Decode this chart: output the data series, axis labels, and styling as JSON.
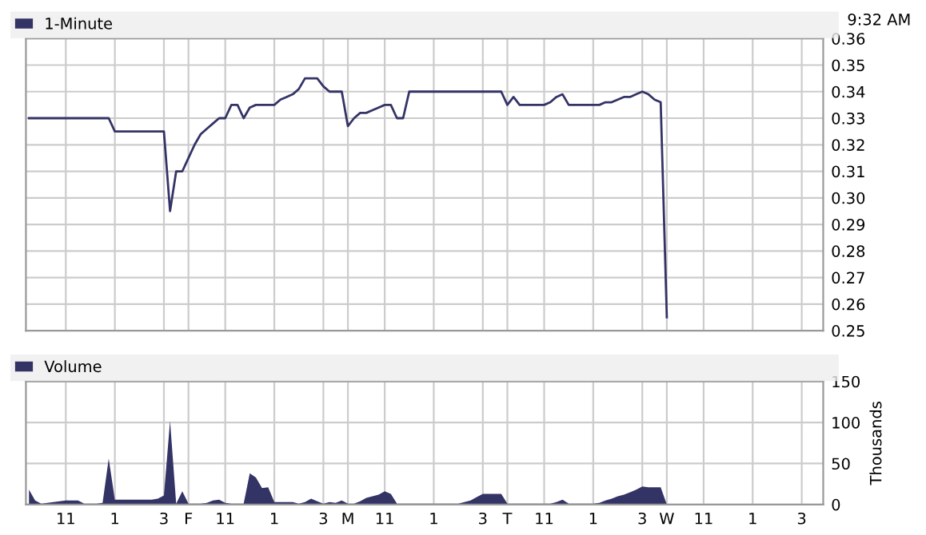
{
  "chart_data": [
    {
      "type": "line",
      "legend": "top left",
      "grid": true,
      "tick_labels": "y",
      "annotations": [
        "9:32 AM"
      ],
      "ylim": [
        0.25,
        0.36
      ],
      "categories": [
        null,
        null,
        null,
        null,
        null,
        null,
        null,
        null,
        null,
        null,
        null,
        null,
        null,
        null,
        null,
        null,
        null,
        null,
        null,
        null,
        null,
        null,
        null,
        null,
        null,
        null,
        null,
        null,
        null,
        null,
        null,
        null,
        null,
        null,
        null,
        null,
        null,
        null,
        null,
        null,
        null,
        null,
        null,
        null,
        null,
        null,
        null,
        null,
        null,
        null,
        null,
        null,
        null,
        null,
        null,
        null,
        null,
        null,
        null,
        null,
        null,
        null,
        null,
        null,
        null,
        null,
        null,
        null,
        null,
        null,
        null,
        null,
        null,
        null,
        null,
        null,
        null,
        null,
        null,
        null,
        null,
        null,
        null,
        null,
        null,
        null,
        null,
        null,
        null,
        null,
        null,
        null,
        null,
        null,
        null,
        null,
        null,
        null,
        null,
        null,
        null,
        null,
        null,
        null,
        null,
        null,
        null,
        null,
        null,
        null,
        null,
        null,
        null,
        null,
        null,
        null,
        null,
        null,
        null,
        null,
        null,
        null,
        null,
        null,
        null,
        null,
        null,
        null,
        null,
        null
      ],
      "yticks": [
        {
          "value": 0.25,
          "label": "0.25"
        },
        {
          "value": 0.26,
          "label": "0.26"
        },
        {
          "value": 0.27,
          "label": "0.27"
        },
        {
          "value": 0.28,
          "label": "0.28"
        },
        {
          "value": 0.29,
          "label": "0.29"
        },
        {
          "value": 0.3,
          "label": "0.30"
        },
        {
          "value": 0.31,
          "label": "0.31"
        },
        {
          "value": 0.32,
          "label": "0.32"
        },
        {
          "value": 0.33,
          "label": "0.33"
        },
        {
          "value": 0.34,
          "label": "0.34"
        },
        {
          "value": 0.35,
          "label": "0.35"
        },
        {
          "value": 0.36,
          "label": "0.36"
        }
      ],
      "series": [
        {
          "name": "1-Minute",
          "color": "#333366",
          "values": [
            0.33,
            0.33,
            0.33,
            0.33,
            0.33,
            0.33,
            0.33,
            0.33,
            0.33,
            0.33,
            0.33,
            0.33,
            0.33,
            0.33,
            0.325,
            0.325,
            0.325,
            0.325,
            0.325,
            0.325,
            0.325,
            0.325,
            0.325,
            0.295,
            0.31,
            0.31,
            0.315,
            0.32,
            0.324,
            0.326,
            0.328,
            0.33,
            0.33,
            0.335,
            0.335,
            0.33,
            0.334,
            0.335,
            0.335,
            0.335,
            0.335,
            0.337,
            0.338,
            0.339,
            0.341,
            0.345,
            0.345,
            0.345,
            0.342,
            0.34,
            0.34,
            0.34,
            0.327,
            0.33,
            0.332,
            0.332,
            0.333,
            0.334,
            0.335,
            0.335,
            0.33,
            0.33,
            0.34,
            0.34,
            0.34,
            0.34,
            0.34,
            0.34,
            0.34,
            0.34,
            0.34,
            0.34,
            0.34,
            0.34,
            0.34,
            0.34,
            0.34,
            0.34,
            0.335,
            0.338,
            0.335,
            0.335,
            0.335,
            0.335,
            0.335,
            0.336,
            0.338,
            0.339,
            0.335,
            0.335,
            0.335,
            0.335,
            0.335,
            0.335,
            0.336,
            0.336,
            0.337,
            0.338,
            0.338,
            0.339,
            0.34,
            0.339,
            0.337,
            0.336,
            0.255,
            null,
            null,
            null,
            null,
            null,
            null,
            null,
            null,
            null,
            null,
            null,
            null,
            null,
            null,
            null,
            null,
            null,
            null,
            null,
            null,
            null,
            null,
            null,
            null,
            null
          ]
        }
      ]
    },
    {
      "type": "area",
      "legend": "top left",
      "grid": true,
      "ylabel": "Thousands",
      "ylim": [
        0,
        150
      ],
      "yticks": [
        0,
        50,
        100,
        150
      ],
      "categories": [
        null,
        null,
        null,
        null,
        null,
        null,
        "11",
        null,
        null,
        null,
        null,
        null,
        null,
        null,
        "1",
        null,
        null,
        null,
        null,
        null,
        null,
        null,
        "3",
        null,
        null,
        null,
        "F",
        null,
        null,
        null,
        null,
        null,
        "11",
        null,
        null,
        null,
        null,
        null,
        null,
        null,
        "1",
        null,
        null,
        null,
        null,
        null,
        null,
        null,
        "3",
        null,
        null,
        null,
        "M",
        null,
        null,
        null,
        null,
        null,
        "11",
        null,
        null,
        null,
        null,
        null,
        null,
        null,
        "1",
        null,
        null,
        null,
        null,
        null,
        null,
        null,
        "3",
        null,
        null,
        null,
        "T",
        null,
        null,
        null,
        null,
        null,
        "11",
        null,
        null,
        null,
        null,
        null,
        null,
        null,
        "1",
        null,
        null,
        null,
        null,
        null,
        null,
        null,
        "3",
        null,
        null,
        null,
        "W",
        null,
        null,
        null,
        null,
        null,
        "11",
        null,
        null,
        null,
        null,
        null,
        null,
        null,
        "1",
        null,
        null,
        null,
        null,
        null,
        null,
        null,
        "3",
        null,
        null,
        null
      ],
      "series": [
        {
          "name": "Volume",
          "color": "#333366",
          "values": [
            18,
            5,
            1,
            2,
            3,
            4,
            5,
            5,
            5,
            1,
            1,
            1,
            2,
            56,
            6,
            6,
            6,
            6,
            6,
            6,
            6,
            7,
            11,
            102,
            1,
            16,
            1,
            1,
            1,
            2,
            5,
            6,
            2,
            1,
            1,
            1,
            38,
            33,
            20,
            21,
            3,
            3,
            3,
            3,
            1,
            3,
            7,
            4,
            1,
            3,
            2,
            5,
            1,
            1,
            4,
            8,
            10,
            12,
            16,
            13,
            1,
            1,
            1,
            1,
            1,
            1,
            1,
            1,
            1,
            1,
            1,
            3,
            5,
            9,
            13,
            13,
            13,
            13,
            1,
            1,
            1,
            1,
            1,
            1,
            1,
            1,
            3,
            6,
            1,
            1,
            1,
            1,
            1,
            2,
            5,
            7,
            10,
            12,
            15,
            18,
            22,
            21,
            21,
            21,
            0,
            null,
            null,
            null,
            null,
            null,
            null,
            null,
            null,
            null,
            null,
            null,
            null,
            null,
            null,
            null,
            null,
            null,
            null,
            null,
            null,
            null,
            null,
            null,
            null,
            null
          ]
        }
      ]
    }
  ]
}
